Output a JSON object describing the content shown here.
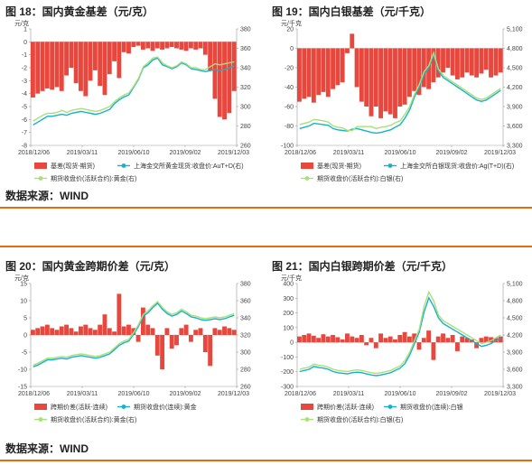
{
  "accent_color": "#e46c0a",
  "top": {
    "source_label": "数据来源：WIND",
    "left_chart": {
      "title": "图 18：国内黄金基差（元/克）",
      "chart_data": {
        "type": "bar",
        "unit_left": "元/克",
        "yleft_ticks": [
          "1",
          "0",
          "-1",
          "-2",
          "-3",
          "-4",
          "-5",
          "-6",
          "-7",
          "-8"
        ],
        "yleft_lim": [
          -8,
          1
        ],
        "yright_ticks": [
          "380",
          "360",
          "340",
          "320",
          "300",
          "280",
          "260"
        ],
        "yright_lim": [
          260,
          380
        ],
        "x_ticks": [
          "2018/12/06",
          "2019/03/11",
          "2019/06/10",
          "2019/09/02",
          "2019/12/03"
        ],
        "series": [
          {
            "name": "基差(现货-期货)",
            "kind": "bar",
            "axis": "left",
            "color": "#e8473e",
            "values": [
              -4.3,
              -4.0,
              -3.8,
              -3.6,
              -3.7,
              -3.5,
              -3.8,
              -2.6,
              -2.0,
              -3.2,
              -3.8,
              -4.2,
              -3.0,
              -2.2,
              -3.4,
              -4.1,
              -2.5,
              -1.5,
              -2.8,
              -0.8,
              -0.9,
              -0.4,
              -0.3,
              -0.6,
              -0.5,
              -0.7,
              -0.5,
              -0.6,
              -0.5,
              -0.4,
              -0.5,
              -0.6,
              -0.7,
              -0.5,
              -0.6,
              -0.5,
              -1.0,
              -2.2,
              -4.4,
              -5.8,
              -6.0,
              -5.5,
              -3.8
            ]
          },
          {
            "name": "上海金交所黄金现货:收盘价:AuT+D(右)",
            "kind": "line",
            "axis": "right",
            "color": "#17b1c9",
            "values": [
              281,
              284,
              287,
              290,
              290,
              291,
              292,
              291,
              293,
              294,
              295,
              294,
              293,
              292,
              293,
              295,
              297,
              303,
              307,
              310,
              312,
              320,
              328,
              340,
              343,
              348,
              350,
              343,
              341,
              339,
              341,
              345,
              343,
              339,
              338,
              337,
              336,
              337,
              338,
              337,
              338,
              340,
              342
            ]
          },
          {
            "name": "期货收盘价(活跃合约):黄金(右)",
            "kind": "line",
            "axis": "right",
            "color": "#a8e07a",
            "values": [
              285,
              288,
              291,
              293,
              293,
              294,
              296,
              294,
              296,
              297,
              298,
              297,
              296,
              295,
              296,
              298,
              300,
              305,
              309,
              312,
              314,
              321,
              329,
              341,
              345,
              350,
              351,
              345,
              342,
              340,
              342,
              346,
              344,
              340,
              340,
              338,
              338,
              341,
              344,
              343,
              344,
              345,
              346
            ]
          }
        ]
      }
    },
    "right_chart": {
      "title": "图 19：国内白银基差（元/千克）",
      "chart_data": {
        "type": "bar",
        "unit_left": "元/千克",
        "yleft_ticks": [
          "20",
          "0",
          "-20",
          "-40",
          "-60",
          "-80",
          "-100"
        ],
        "yleft_lim": [
          -100,
          20
        ],
        "yright_ticks": [
          "5,100",
          "4,800",
          "4,500",
          "4,200",
          "3,900",
          "3,600",
          "3,300"
        ],
        "yright_lim": [
          3300,
          5100
        ],
        "x_ticks": [
          "2018/12/06",
          "2019/03/11",
          "2019/06/10",
          "2019/09/02",
          "2019/12/03"
        ],
        "series": [
          {
            "name": "基差(现货-期货)",
            "kind": "bar",
            "axis": "left",
            "color": "#e8473e",
            "values": [
              -55,
              -52,
              -50,
              -56,
              -48,
              -45,
              -50,
              -42,
              -38,
              -35,
              -5,
              15,
              -40,
              -55,
              -60,
              -70,
              -60,
              -72,
              -65,
              -68,
              -72,
              -60,
              -58,
              -50,
              -44,
              -48,
              -40,
              -42,
              -35,
              -30,
              -25,
              -20,
              -28,
              -32,
              -30,
              -25,
              -28,
              -30,
              -26,
              -22,
              -30,
              -28,
              -25
            ]
          },
          {
            "name": "上海金交所白银现货:收盘价:Ag(T+D)(右)",
            "kind": "line",
            "axis": "right",
            "color": "#17b1c9",
            "values": [
              3560,
              3580,
              3600,
              3640,
              3630,
              3620,
              3610,
              3560,
              3540,
              3530,
              3520,
              3550,
              3560,
              3540,
              3520,
              3500,
              3490,
              3500,
              3520,
              3540,
              3580,
              3620,
              3720,
              3850,
              4050,
              4200,
              4400,
              4500,
              4700,
              4450,
              4350,
              4300,
              4250,
              4200,
              4150,
              4100,
              4050,
              4000,
              3980,
              4000,
              4050,
              4100,
              4150
            ]
          },
          {
            "name": "期货收盘价(活跃合约):白银(右)",
            "kind": "line",
            "axis": "right",
            "color": "#a8e07a",
            "values": [
              3620,
              3640,
              3660,
              3700,
              3690,
              3680,
              3660,
              3600,
              3580,
              3570,
              3530,
              3530,
              3590,
              3590,
              3590,
              3590,
              3560,
              3580,
              3590,
              3610,
              3650,
              3680,
              3780,
              3900,
              4090,
              4240,
              4440,
              4530,
              4730,
              4480,
              4380,
              4330,
              4280,
              4230,
              4180,
              4130,
              4080,
              4030,
              4010,
              4030,
              4080,
              4130,
              4180
            ]
          }
        ]
      }
    }
  },
  "bottom": {
    "source_label": "数据来源：WIND",
    "left_chart": {
      "title": "图 20：国内黄金跨期价差（元/克）",
      "chart_data": {
        "type": "bar",
        "unit_left": "元/克",
        "yleft_ticks": [
          "15",
          "10",
          "5",
          "0",
          "-5",
          "-10",
          "-15"
        ],
        "yleft_lim": [
          -15,
          15
        ],
        "yright_ticks": [
          "380",
          "360",
          "340",
          "320",
          "300",
          "280",
          "260"
        ],
        "yright_lim": [
          260,
          380
        ],
        "x_ticks": [
          "2018/12/06",
          "2019/03/11",
          "2019/06/10",
          "2019/09/02",
          "2019/12/03"
        ],
        "series": [
          {
            "name": "跨期价差(活跃-连续)",
            "kind": "bar",
            "axis": "left",
            "color": "#e8473e",
            "values": [
              1.5,
              2.0,
              2.5,
              3.0,
              2.0,
              1.5,
              2.5,
              3.0,
              2.0,
              1.0,
              2.5,
              3.0,
              2.0,
              1.5,
              3.0,
              6.0,
              2.0,
              1.0,
              12.0,
              2.5,
              3.0,
              2.0,
              -2.0,
              8.0,
              3.0,
              2.0,
              -6.0,
              -10.0,
              2.0,
              -4.0,
              -3.0,
              2.0,
              3.0,
              -2.0,
              1.5,
              2.0,
              -5.0,
              -9.0,
              2.0,
              1.5,
              2.5,
              2.0,
              1.5
            ]
          },
          {
            "name": "期货收盘价(连续):黄金",
            "kind": "line",
            "axis": "right",
            "color": "#17b1c9",
            "values": [
              283,
              285,
              288,
              291,
              291,
              292,
              293,
              292,
              294,
              295,
              296,
              295,
              294,
              293,
              294,
              296,
              298,
              303,
              308,
              311,
              313,
              321,
              330,
              342,
              346,
              352,
              357,
              350,
              345,
              342,
              344,
              348,
              345,
              341,
              340,
              338,
              337,
              338,
              339,
              338,
              339,
              341,
              343
            ]
          },
          {
            "name": "期货收盘价(活跃合约):黄金(右)",
            "kind": "line",
            "axis": "right",
            "color": "#a8e07a",
            "values": [
              285,
              287,
              290,
              293,
              293,
              294,
              295,
              294,
              296,
              297,
              298,
              297,
              296,
              295,
              296,
              298,
              300,
              305,
              310,
              313,
              315,
              323,
              332,
              344,
              348,
              354,
              359,
              352,
              347,
              344,
              346,
              350,
              347,
              343,
              342,
              340,
              339,
              340,
              341,
              340,
              341,
              343,
              345
            ]
          }
        ]
      }
    },
    "right_chart": {
      "title": "图 21：国内白银跨期价差（元/千克）",
      "chart_data": {
        "type": "bar",
        "unit_left": "元/千克",
        "yleft_ticks": [
          "400",
          "300",
          "200",
          "100",
          "0",
          "-100",
          "-200",
          "-300"
        ],
        "yleft_lim": [
          -300,
          400
        ],
        "yright_ticks": [
          "5,100",
          "4,800",
          "4,500",
          "4,200",
          "3,900",
          "3,600",
          "3,300"
        ],
        "yright_lim": [
          3300,
          5100
        ],
        "x_ticks": [
          "2018/12/06",
          "2019/03/11",
          "2019/06/10",
          "2019/09/02",
          "2019/12/03"
        ],
        "series": [
          {
            "name": "跨期价差(活跃-连续)",
            "kind": "bar",
            "axis": "left",
            "color": "#e8473e",
            "values": [
              40,
              50,
              60,
              45,
              30,
              55,
              40,
              50,
              35,
              20,
              60,
              40,
              30,
              50,
              -20,
              30,
              -40,
              60,
              30,
              40,
              20,
              50,
              70,
              40,
              60,
              -50,
              30,
              80,
              -120,
              40,
              60,
              30,
              50,
              -60,
              40,
              30,
              20,
              -40,
              30,
              40,
              35,
              30,
              40
            ]
          },
          {
            "name": "期货收盘价(连续):白银",
            "kind": "line",
            "axis": "right",
            "color": "#17b1c9",
            "values": [
              3560,
              3580,
              3600,
              3650,
              3630,
              3620,
              3600,
              3560,
              3540,
              3530,
              3520,
              3540,
              3550,
              3540,
              3520,
              3500,
              3490,
              3500,
              3520,
              3540,
              3580,
              3620,
              3700,
              3850,
              4050,
              4250,
              4600,
              4850,
              4700,
              4500,
              4400,
              4350,
              4300,
              4250,
              4200,
              4150,
              4100,
              4050,
              4000,
              4020,
              4050,
              4100,
              4150
            ]
          },
          {
            "name": "期货收盘价(活跃合约):白银(右)",
            "kind": "line",
            "axis": "right",
            "color": "#a8e07a",
            "values": [
              3600,
              3620,
              3640,
              3690,
              3670,
              3660,
              3640,
              3600,
              3580,
              3570,
              3560,
              3580,
              3590,
              3580,
              3560,
              3540,
              3530,
              3540,
              3560,
              3580,
              3620,
              3660,
              3750,
              3900,
              4100,
              4300,
              4700,
              4950,
              4800,
              4550,
              4450,
              4400,
              4350,
              4300,
              4250,
              4200,
              4150,
              4100,
              4050,
              4070,
              4100,
              4150,
              4200
            ]
          }
        ]
      }
    }
  }
}
